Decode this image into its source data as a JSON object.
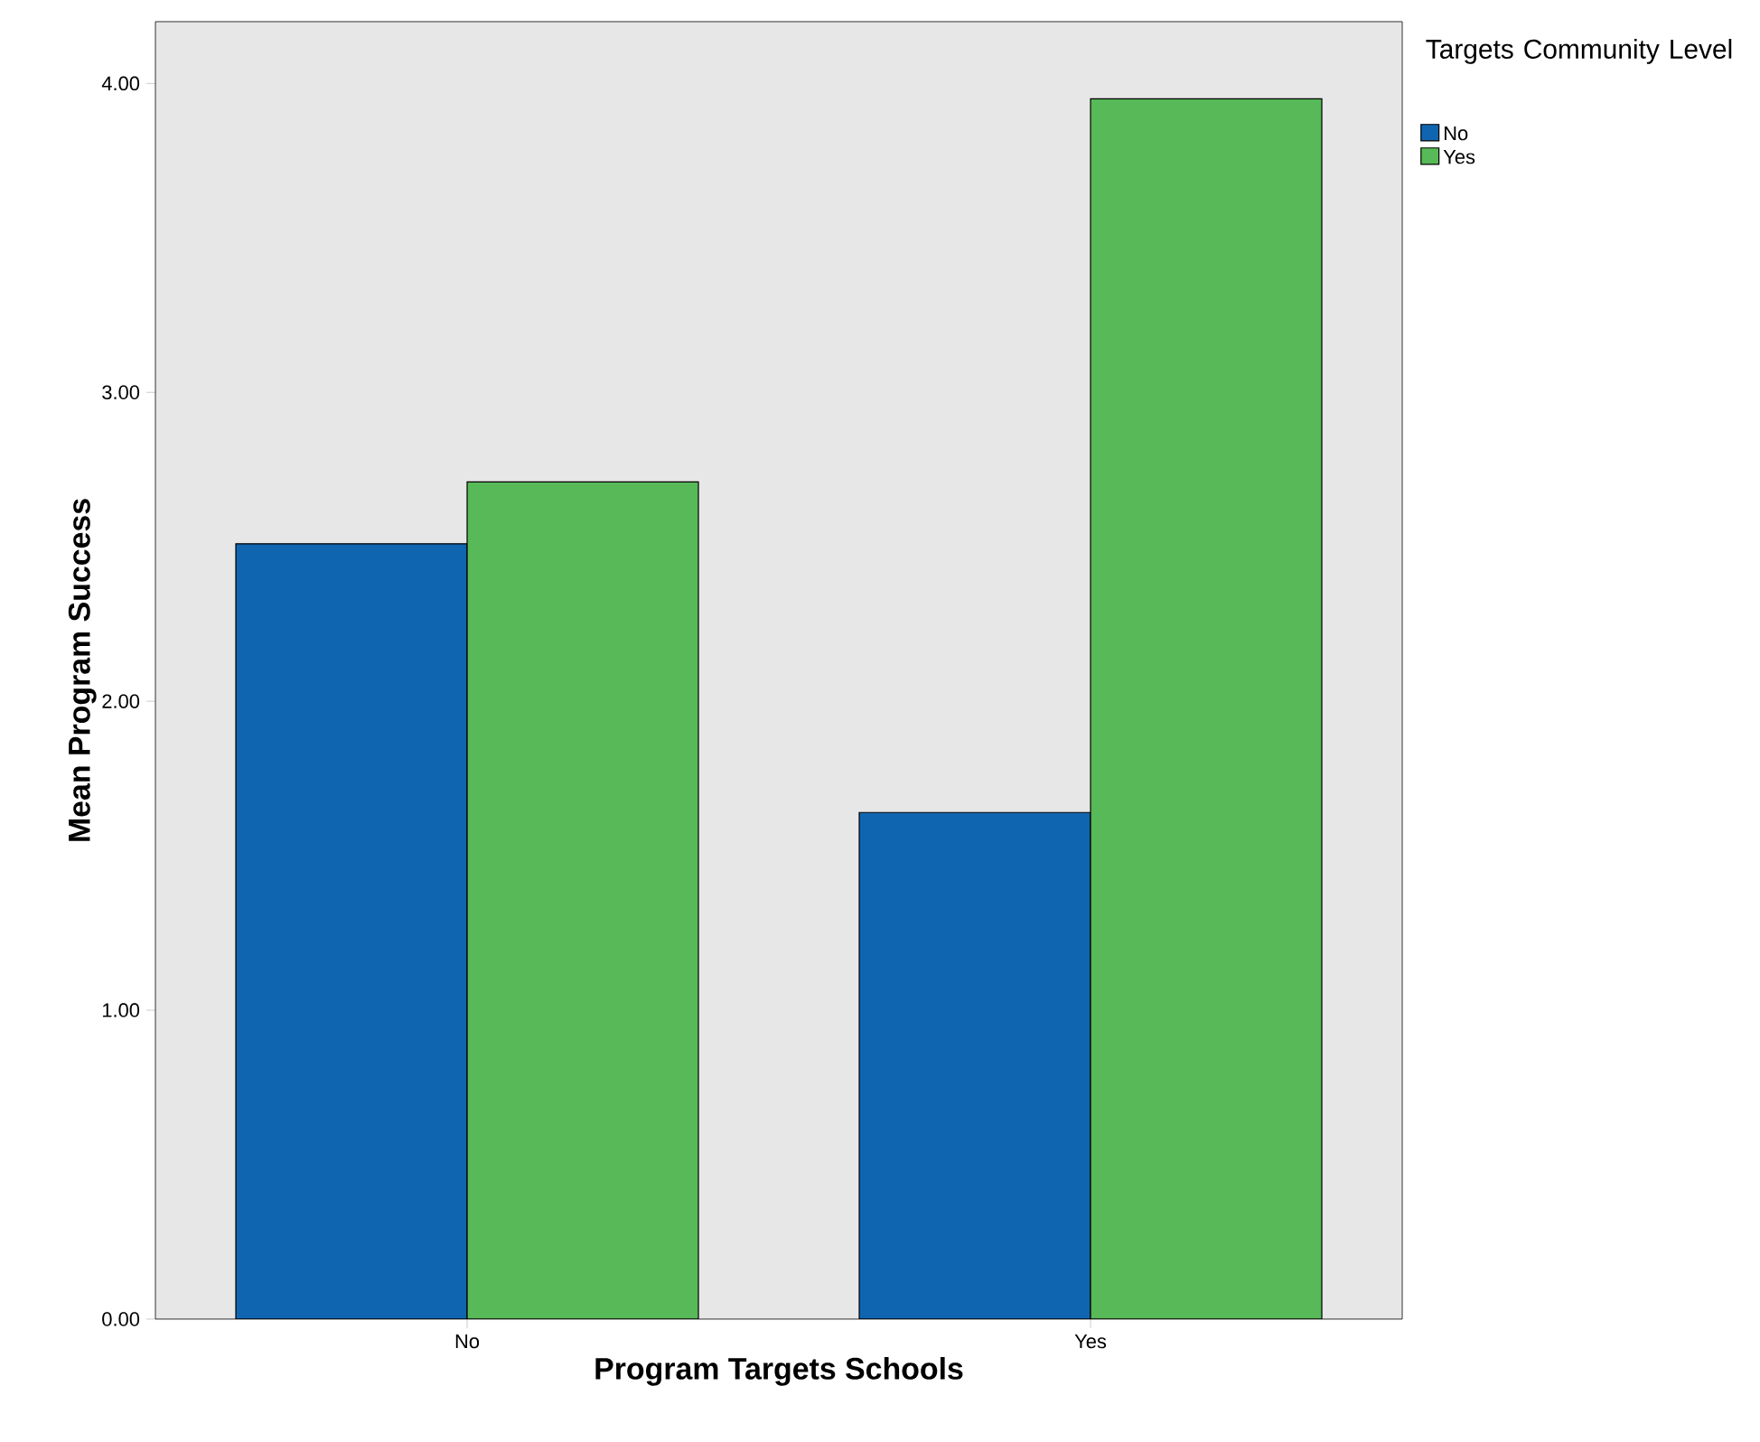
{
  "chart_data": {
    "type": "bar",
    "xlabel": "Program Targets Schools",
    "ylabel": "Mean Program Success",
    "legend_title": "Targets Community Level",
    "categories": [
      "No",
      "Yes"
    ],
    "series": [
      {
        "name": "No",
        "color": "#1065b0",
        "values": [
          2.51,
          1.64
        ]
      },
      {
        "name": "Yes",
        "color": "#57b957",
        "values": [
          2.71,
          3.95
        ]
      }
    ],
    "ylim": [
      0,
      4.2
    ],
    "yticks": [
      {
        "value": 0,
        "label": "0.00"
      },
      {
        "value": 1,
        "label": "1.00"
      },
      {
        "value": 2,
        "label": "2.00"
      },
      {
        "value": 3,
        "label": "3.00"
      },
      {
        "value": 4,
        "label": "4.00"
      }
    ],
    "grid": false,
    "legend": "right"
  }
}
